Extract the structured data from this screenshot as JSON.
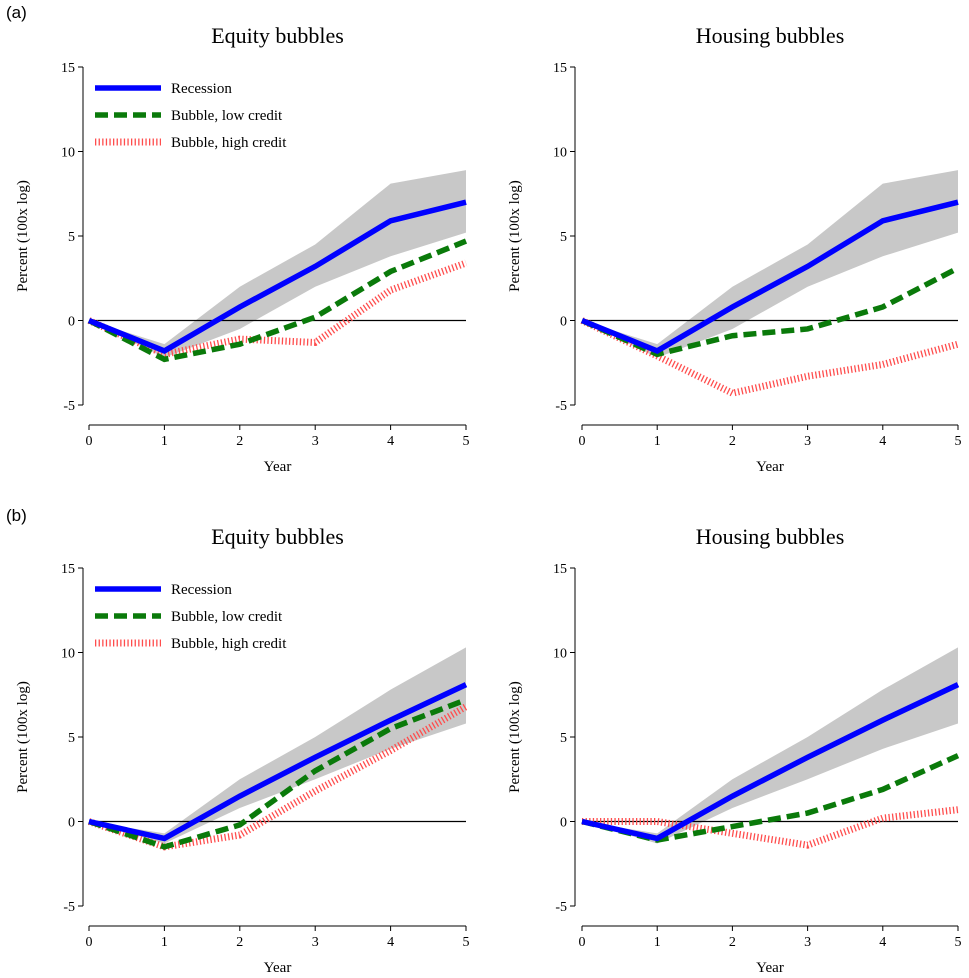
{
  "colors": {
    "recession": "#0000ff",
    "bubble_low": "#0a7a0a",
    "bubble_high": "#ff4d4d",
    "band": "#c8c8c8",
    "zero_line": "#000000"
  },
  "rows": [
    {
      "letter": "(a)"
    },
    {
      "letter": "(b)"
    }
  ],
  "chart_data": [
    {
      "type": "line",
      "panel": "a",
      "title": "Equity bubbles",
      "xlabel": "Year",
      "ylabel": "Percent (100x log)",
      "x": [
        0,
        1,
        2,
        3,
        4,
        5
      ],
      "xticks": [
        "0",
        "1",
        "2",
        "3",
        "4",
        "5"
      ],
      "ylim": [
        -5,
        15
      ],
      "yticks": [
        -5,
        0,
        5,
        10,
        15
      ],
      "ytick_labels": [
        "-5",
        "0",
        "5",
        "10",
        "15"
      ],
      "legend": "top-left",
      "series": [
        {
          "name": "Recession",
          "style": "solid",
          "values": [
            0,
            -1.8,
            0.8,
            3.2,
            5.9,
            7.0
          ]
        },
        {
          "name": "Bubble, low credit",
          "style": "dashed",
          "values": [
            0,
            -2.3,
            -1.4,
            0.2,
            2.9,
            4.7
          ]
        },
        {
          "name": "Bubble, high credit",
          "style": "dotted",
          "values": [
            0,
            -2.0,
            -1.1,
            -1.3,
            1.8,
            3.4
          ]
        }
      ],
      "band": {
        "lower": [
          0,
          -2.2,
          -0.5,
          2.0,
          3.8,
          5.2
        ],
        "upper": [
          0,
          -1.4,
          2.0,
          4.5,
          8.1,
          8.9
        ]
      }
    },
    {
      "type": "line",
      "panel": "a",
      "title": "Housing bubbles",
      "xlabel": "Year",
      "ylabel": "Percent (100x log)",
      "x": [
        0,
        1,
        2,
        3,
        4,
        5
      ],
      "xticks": [
        "0",
        "1",
        "2",
        "3",
        "4",
        "5"
      ],
      "ylim": [
        -5,
        15
      ],
      "yticks": [
        -5,
        0,
        5,
        10,
        15
      ],
      "ytick_labels": [
        "-5",
        "0",
        "5",
        "10",
        "15"
      ],
      "legend": "none",
      "series": [
        {
          "name": "Recession",
          "style": "solid",
          "values": [
            0,
            -1.8,
            0.8,
            3.2,
            5.9,
            7.0
          ]
        },
        {
          "name": "Bubble, low credit",
          "style": "dashed",
          "values": [
            0,
            -2.0,
            -0.9,
            -0.5,
            0.8,
            3.1
          ]
        },
        {
          "name": "Bubble, high credit",
          "style": "dotted",
          "values": [
            0,
            -2.1,
            -4.3,
            -3.3,
            -2.6,
            -1.4
          ]
        }
      ],
      "band": {
        "lower": [
          0,
          -2.2,
          -0.5,
          2.0,
          3.8,
          5.2
        ],
        "upper": [
          0,
          -1.4,
          2.0,
          4.5,
          8.1,
          8.9
        ]
      }
    },
    {
      "type": "line",
      "panel": "b",
      "title": "Equity bubbles",
      "xlabel": "Year",
      "ylabel": "Percent (100x log)",
      "x": [
        0,
        1,
        2,
        3,
        4,
        5
      ],
      "xticks": [
        "0",
        "1",
        "2",
        "3",
        "4",
        "5"
      ],
      "ylim": [
        -5,
        15
      ],
      "yticks": [
        -5,
        0,
        5,
        10,
        15
      ],
      "ytick_labels": [
        "-5",
        "0",
        "5",
        "10",
        "15"
      ],
      "legend": "top-left",
      "series": [
        {
          "name": "Recession",
          "style": "solid",
          "values": [
            0,
            -1.0,
            1.5,
            3.8,
            6.0,
            8.1
          ]
        },
        {
          "name": "Bubble, low credit",
          "style": "dashed",
          "values": [
            0,
            -1.5,
            -0.2,
            3.0,
            5.5,
            7.2
          ]
        },
        {
          "name": "Bubble, high credit",
          "style": "dotted",
          "values": [
            0,
            -1.5,
            -0.8,
            1.8,
            4.2,
            6.8
          ]
        }
      ],
      "band": {
        "lower": [
          0,
          -1.3,
          0.8,
          2.5,
          4.3,
          5.8
        ],
        "upper": [
          0,
          -0.7,
          2.5,
          5.0,
          7.8,
          10.3
        ]
      }
    },
    {
      "type": "line",
      "panel": "b",
      "title": "Housing bubbles",
      "xlabel": "Year",
      "ylabel": "Percent (100x log)",
      "x": [
        0,
        1,
        2,
        3,
        4,
        5
      ],
      "xticks": [
        "0",
        "1",
        "2",
        "3",
        "4",
        "5"
      ],
      "ylim": [
        -5,
        15
      ],
      "yticks": [
        -5,
        0,
        5,
        10,
        15
      ],
      "ytick_labels": [
        "-5",
        "0",
        "5",
        "10",
        "15"
      ],
      "legend": "none",
      "series": [
        {
          "name": "Recession",
          "style": "solid",
          "values": [
            0,
            -1.0,
            1.5,
            3.8,
            6.0,
            8.1
          ]
        },
        {
          "name": "Bubble, low credit",
          "style": "dashed",
          "values": [
            0,
            -1.1,
            -0.3,
            0.5,
            1.9,
            3.9
          ]
        },
        {
          "name": "Bubble, high credit",
          "style": "dotted",
          "values": [
            0,
            0.0,
            -0.7,
            -1.4,
            0.2,
            0.7
          ]
        }
      ],
      "band": {
        "lower": [
          0,
          -1.3,
          0.8,
          2.5,
          4.3,
          5.8
        ],
        "upper": [
          0,
          -0.7,
          2.5,
          5.0,
          7.8,
          10.3
        ]
      }
    }
  ]
}
